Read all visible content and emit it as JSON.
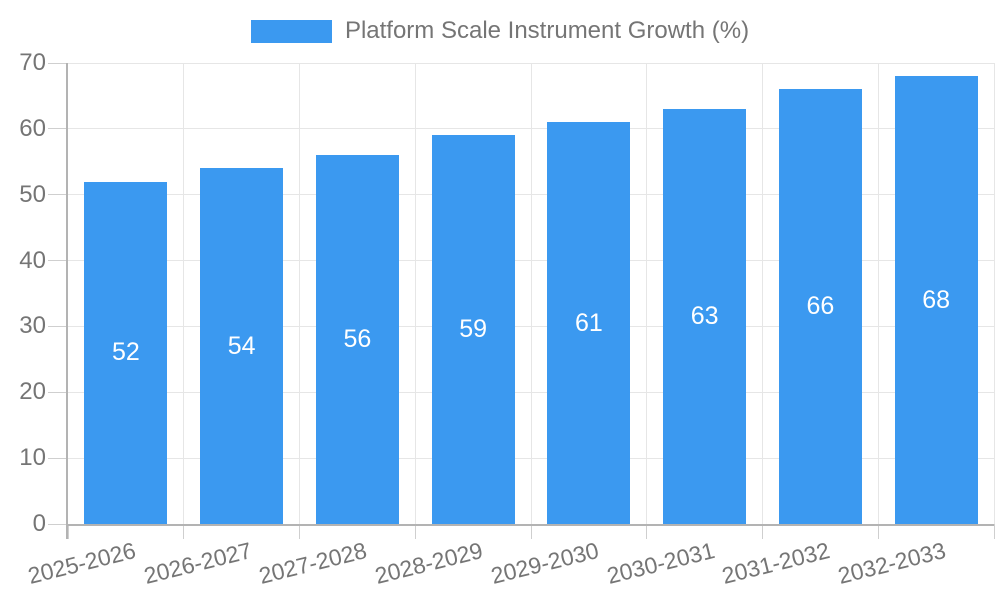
{
  "legend": {
    "label": "Platform Scale Instrument Growth (%)"
  },
  "chart_data": {
    "type": "bar",
    "title": "Platform Scale Instrument Growth (%)",
    "categories": [
      "2025-2026",
      "2026-2027",
      "2027-2028",
      "2028-2029",
      "2029-2030",
      "2030-2031",
      "2031-2032",
      "2032-2033"
    ],
    "values": [
      52,
      54,
      56,
      59,
      61,
      63,
      66,
      68
    ],
    "xlabel": "",
    "ylabel": "",
    "ylim": [
      0,
      70
    ],
    "yticks": [
      0,
      10,
      20,
      30,
      40,
      50,
      60,
      70
    ],
    "grid": true,
    "legend_position": "top-center",
    "value_label_position": "inside-center",
    "x_label_rotation_deg": -14,
    "colors": {
      "bar": "#3B99F0",
      "value_label": "#FFFFFF",
      "axis_text": "#757575",
      "grid_line": "#E6E6E6",
      "axis_line": "#B3B3B3",
      "tick_mark": "#CFCFCF",
      "background": "#FFFFFF"
    }
  }
}
